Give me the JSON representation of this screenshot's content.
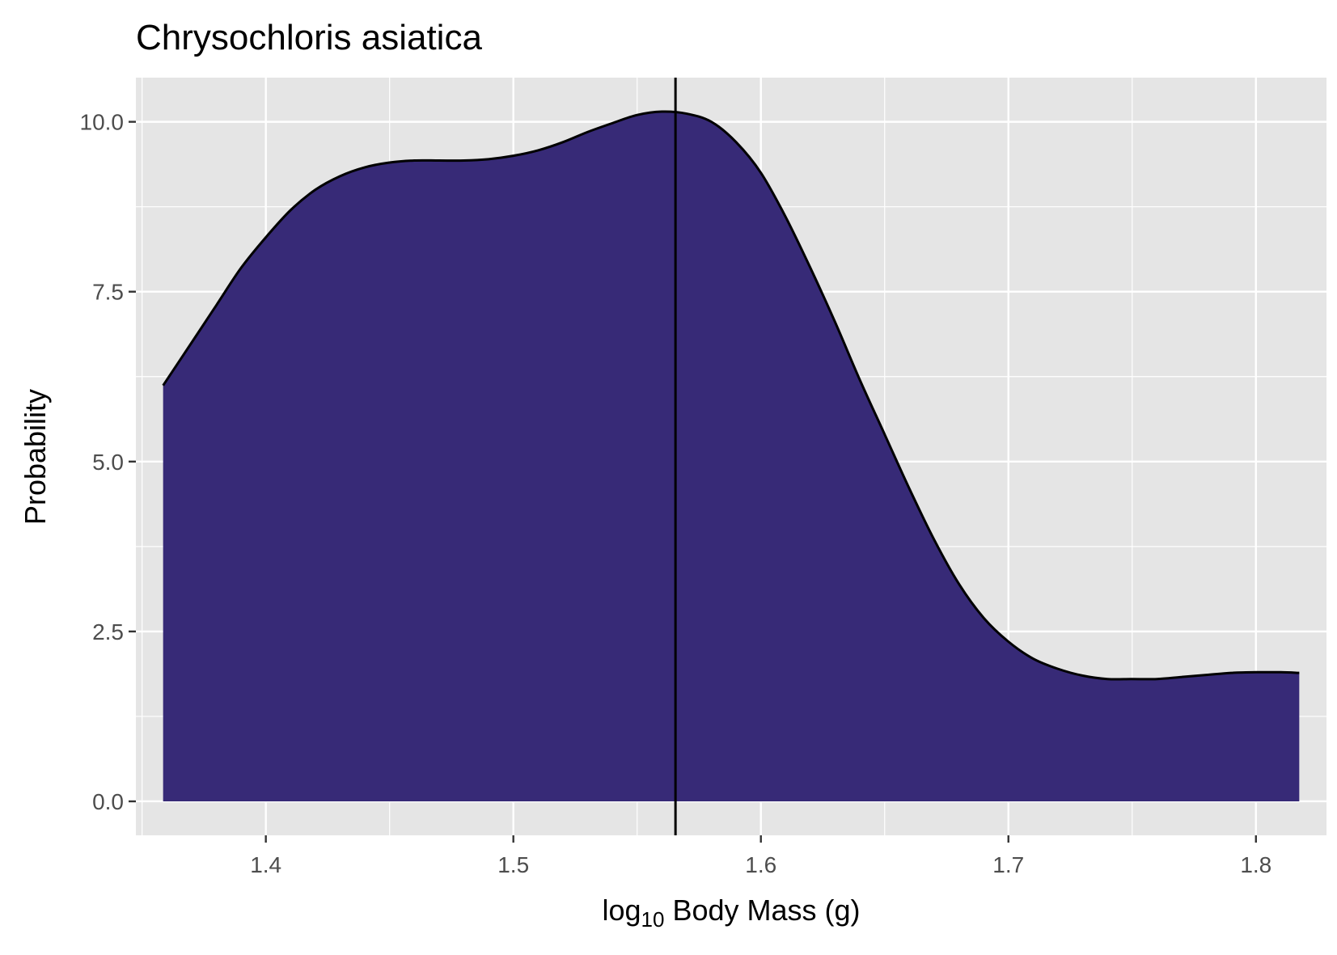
{
  "chart_data": {
    "type": "area",
    "title": "Chrysochloris asiatica",
    "xlabel": {
      "prefix": "log",
      "subscript": "10",
      "suffix": " Body Mass (g)"
    },
    "ylabel": "Probability",
    "xlim": [
      1.3475,
      1.8285
    ],
    "ylim": [
      -0.5,
      10.65
    ],
    "x_ticks": [
      1.4,
      1.5,
      1.6,
      1.7,
      1.8
    ],
    "x_tick_labels": [
      "1.4",
      "1.5",
      "1.6",
      "1.7",
      "1.8"
    ],
    "y_ticks": [
      0,
      2.5,
      5,
      7.5,
      10
    ],
    "y_tick_labels": [
      "0.0",
      "2.5",
      "5.0",
      "7.5",
      "10.0"
    ],
    "vline": 1.5655,
    "grid": true,
    "legend": "none",
    "colors": {
      "fill": "#372a77",
      "outline": "#000000",
      "panel": "#e5e5e5",
      "grid": "#ffffff",
      "tick_label": "#4d4d4d"
    },
    "series": [
      {
        "x": [
          1.3585,
          1.37,
          1.38,
          1.39,
          1.4,
          1.41,
          1.42,
          1.43,
          1.44,
          1.45,
          1.46,
          1.47,
          1.48,
          1.49,
          1.5,
          1.51,
          1.52,
          1.53,
          1.54,
          1.55,
          1.56,
          1.57,
          1.58,
          1.59,
          1.6,
          1.61,
          1.62,
          1.63,
          1.64,
          1.65,
          1.66,
          1.67,
          1.68,
          1.69,
          1.7,
          1.71,
          1.72,
          1.73,
          1.74,
          1.75,
          1.76,
          1.77,
          1.78,
          1.79,
          1.8,
          1.81,
          1.8175
        ],
        "y": [
          6.12,
          6.75,
          7.3,
          7.85,
          8.3,
          8.7,
          9.0,
          9.2,
          9.33,
          9.4,
          9.43,
          9.43,
          9.43,
          9.45,
          9.5,
          9.58,
          9.7,
          9.85,
          9.98,
          10.1,
          10.15,
          10.12,
          10.0,
          9.7,
          9.25,
          8.6,
          7.85,
          7.05,
          6.2,
          5.4,
          4.6,
          3.85,
          3.2,
          2.7,
          2.35,
          2.1,
          1.95,
          1.85,
          1.8,
          1.8,
          1.8,
          1.83,
          1.86,
          1.89,
          1.9,
          1.9,
          1.89
        ]
      }
    ]
  }
}
